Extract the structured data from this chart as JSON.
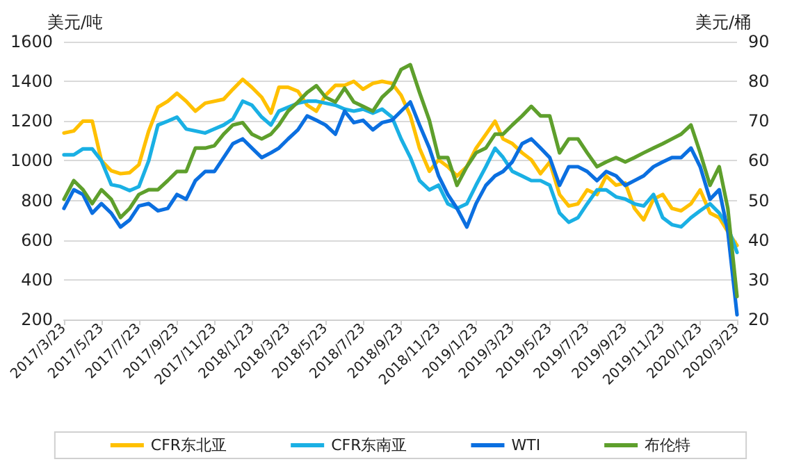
{
  "chart_data": {
    "type": "line",
    "ylabel": "美元/吨",
    "y2label": "美元/桶",
    "x": [
      "2017-03-23",
      "2017-04-08",
      "2017-04-23",
      "2017-05-08",
      "2017-05-23",
      "2017-06-08",
      "2017-06-23",
      "2017-07-08",
      "2017-07-23",
      "2017-08-08",
      "2017-08-23",
      "2017-09-08",
      "2017-09-23",
      "2017-10-08",
      "2017-10-23",
      "2017-11-08",
      "2017-11-23",
      "2017-12-08",
      "2017-12-23",
      "2018-01-08",
      "2018-01-23",
      "2018-02-08",
      "2018-02-23",
      "2018-03-08",
      "2018-03-23",
      "2018-04-08",
      "2018-04-23",
      "2018-05-08",
      "2018-05-23",
      "2018-06-08",
      "2018-06-23",
      "2018-07-08",
      "2018-07-23",
      "2018-08-08",
      "2018-08-23",
      "2018-09-08",
      "2018-09-23",
      "2018-10-08",
      "2018-10-23",
      "2018-11-08",
      "2018-11-23",
      "2018-12-08",
      "2018-12-23",
      "2019-01-08",
      "2019-01-23",
      "2019-02-08",
      "2019-02-23",
      "2019-03-08",
      "2019-03-23",
      "2019-04-08",
      "2019-04-23",
      "2019-05-08",
      "2019-05-23",
      "2019-06-08",
      "2019-06-23",
      "2019-07-08",
      "2019-07-23",
      "2019-08-08",
      "2019-08-23",
      "2019-09-08",
      "2019-09-23",
      "2019-10-08",
      "2019-10-23",
      "2019-11-08",
      "2019-11-23",
      "2019-12-08",
      "2019-12-23",
      "2020-01-08",
      "2020-01-23",
      "2020-02-08",
      "2020-02-23",
      "2020-03-08",
      "2020-03-23"
    ],
    "series": [
      {
        "name": "CFR东北亚",
        "color": "#ffc000",
        "values": [
          1140,
          1150,
          1200,
          1200,
          1000,
          950,
          935,
          940,
          980,
          1150,
          1270,
          1300,
          1340,
          1300,
          1250,
          1290,
          1300,
          1310,
          1360,
          1410,
          1370,
          1320,
          1240,
          1370,
          1370,
          1350,
          1280,
          1250,
          1330,
          1380,
          1380,
          1400,
          1360,
          1390,
          1400,
          1390,
          1330,
          1227,
          1063,
          947,
          1005,
          970,
          923,
          970,
          1063,
          1133,
          1199,
          1110,
          1087,
          1040,
          1005,
          935,
          993,
          830,
          772,
          783,
          853,
          830,
          923,
          877,
          888,
          760,
          702,
          807,
          830,
          760,
          748,
          783,
          853,
          737,
          713,
          643,
          573
        ]
      },
      {
        "name": "CFR东南亚",
        "color": "#1ab0e4",
        "values": [
          1030,
          1030,
          1060,
          1060,
          1000,
          880,
          870,
          850,
          870,
          1000,
          1180,
          1200,
          1220,
          1160,
          1150,
          1140,
          1160,
          1180,
          1210,
          1300,
          1280,
          1220,
          1180,
          1250,
          1270,
          1290,
          1300,
          1300,
          1290,
          1280,
          1260,
          1250,
          1260,
          1240,
          1260,
          1220,
          1110,
          1017,
          900,
          853,
          877,
          783,
          760,
          783,
          877,
          970,
          1063,
          1017,
          947,
          923,
          900,
          900,
          877,
          737,
          690,
          713,
          783,
          853,
          853,
          818,
          807,
          783,
          772,
          830,
          713,
          678,
          667,
          713,
          748,
          783,
          737,
          667,
          538
        ]
      },
      {
        "name": "WTI",
        "color": "#0b6fe0",
        "axis": "y2",
        "values": [
          48.0,
          52.7,
          51.5,
          46.8,
          49.2,
          46.8,
          43.3,
          45.1,
          48.6,
          49.2,
          47.4,
          48.0,
          51.5,
          50.3,
          55.0,
          57.3,
          57.3,
          60.8,
          64.3,
          65.5,
          63.2,
          60.8,
          62.0,
          63.2,
          65.5,
          67.8,
          71.3,
          70.2,
          69.0,
          66.7,
          72.5,
          69.6,
          70.2,
          67.8,
          69.6,
          70.2,
          72.5,
          74.8,
          69.0,
          63.2,
          56.2,
          51.5,
          48.0,
          43.3,
          49.2,
          53.8,
          56.2,
          57.3,
          59.7,
          64.3,
          65.5,
          63.2,
          60.8,
          53.8,
          58.5,
          58.5,
          57.3,
          55.0,
          57.3,
          56.2,
          53.8,
          55.0,
          56.2,
          58.5,
          59.7,
          60.8,
          60.8,
          63.2,
          58.5,
          50.3,
          52.7,
          42.2,
          21.2
        ]
      },
      {
        "name": "布伦特",
        "color": "#5e9f2c",
        "axis": "y2",
        "values": [
          50.3,
          55.0,
          52.7,
          49.2,
          52.7,
          50.3,
          45.7,
          48.0,
          51.5,
          52.7,
          52.7,
          55.0,
          57.3,
          57.3,
          63.2,
          63.2,
          63.8,
          66.7,
          69.0,
          69.6,
          66.7,
          65.5,
          66.7,
          69.0,
          72.5,
          74.8,
          77.2,
          78.9,
          76.0,
          74.8,
          78.3,
          74.8,
          73.7,
          72.5,
          76.0,
          78.3,
          83.0,
          84.2,
          77.2,
          70.2,
          60.8,
          60.8,
          53.8,
          58.5,
          62.0,
          63.2,
          66.7,
          66.7,
          69.0,
          71.3,
          73.7,
          71.3,
          71.3,
          62.0,
          65.5,
          65.5,
          62.0,
          58.5,
          59.7,
          60.8,
          59.7,
          60.8,
          62.0,
          63.2,
          64.3,
          65.5,
          66.7,
          69.0,
          62.0,
          53.8,
          58.5,
          48.0,
          25.8
        ]
      }
    ],
    "xlim": [
      "2017-03-23",
      "2020-03-23"
    ],
    "xticks": [
      {
        "value": "2017-03-23",
        "label": "2017/3/23"
      },
      {
        "value": "2017-05-23",
        "label": "2017/5/23"
      },
      {
        "value": "2017-07-23",
        "label": "2017/7/23"
      },
      {
        "value": "2017-09-23",
        "label": "2017/9/23"
      },
      {
        "value": "2017-11-23",
        "label": "2017/11/23"
      },
      {
        "value": "2018-01-23",
        "label": "2018/1/23"
      },
      {
        "value": "2018-03-23",
        "label": "2018/3/23"
      },
      {
        "value": "2018-05-23",
        "label": "2018/5/23"
      },
      {
        "value": "2018-07-23",
        "label": "2018/7/23"
      },
      {
        "value": "2018-09-23",
        "label": "2018/9/23"
      },
      {
        "value": "2018-11-23",
        "label": "2018/11/23"
      },
      {
        "value": "2019-01-23",
        "label": "2019/1/23"
      },
      {
        "value": "2019-03-23",
        "label": "2019/3/23"
      },
      {
        "value": "2019-05-23",
        "label": "2019/5/23"
      },
      {
        "value": "2019-07-23",
        "label": "2019/7/23"
      },
      {
        "value": "2019-09-23",
        "label": "2019/9/23"
      },
      {
        "value": "2019-11-23",
        "label": "2019/11/23"
      },
      {
        "value": "2020-01-23",
        "label": "2020/1/23"
      },
      {
        "value": "2020-03-23",
        "label": "2020/3/23"
      }
    ],
    "ylim": [
      200,
      1600
    ],
    "yticks": [
      200,
      400,
      600,
      800,
      1000,
      1200,
      1400,
      1600
    ],
    "y2lim": [
      20,
      90
    ],
    "y2ticks": [
      20,
      30,
      40,
      50,
      60,
      70,
      80,
      90
    ],
    "grid": "y",
    "legend": "bottom",
    "marker": "none",
    "line_style": "solid"
  }
}
